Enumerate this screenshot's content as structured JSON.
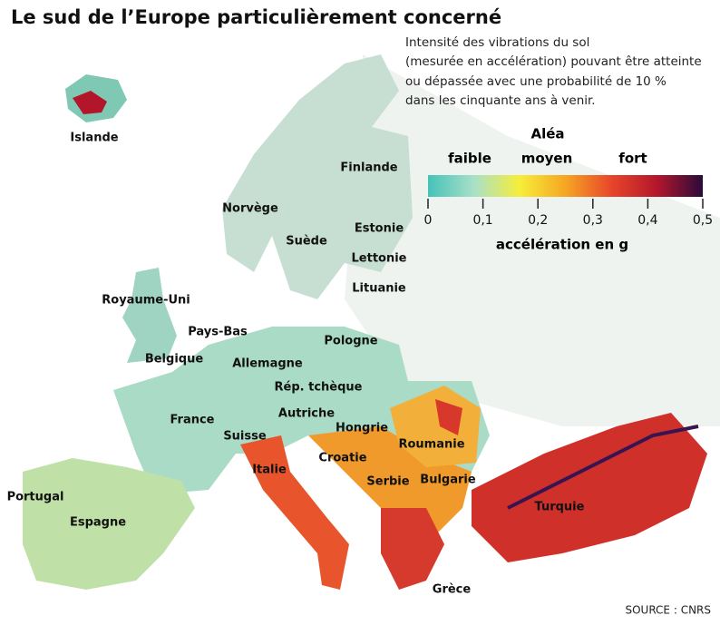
{
  "title": "Le sud de l’Europe particulièrement concerné",
  "description": [
    "Intensité des vibrations du sol",
    "(mesurée en accélération) pouvant être atteinte",
    "ou dépassée avec une probabilité de 10 %",
    "dans les cinquante ans à venir."
  ],
  "legend": {
    "title": "Aléa",
    "levels": [
      "faible",
      "moyen",
      "fort"
    ],
    "scale": {
      "lim": [
        0,
        0.5
      ],
      "ticks": [
        0,
        {
          "value": 0.1,
          "label": "0,1"
        },
        {
          "value": 0.2,
          "label": "0,2"
        },
        {
          "value": 0.3,
          "label": "0,3"
        },
        {
          "value": 0.4,
          "label": "0,4"
        },
        {
          "value": 0.5,
          "label": "0,5"
        }
      ],
      "label": "accélération en g",
      "colors": [
        "#45c2b8",
        "#a8e0c8",
        "#f7ee3a",
        "#f6a623",
        "#e8462a",
        "#b3162b",
        "#2a0b3a"
      ]
    }
  },
  "countries": [
    "Islande",
    "Finlande",
    "Norvège",
    "Suède",
    "Estonie",
    "Lettonie",
    "Lituanie",
    "Royaume-Uni",
    "Pays-Bas",
    "Belgique",
    "Allemagne",
    "Pologne",
    "Rép. tchèque",
    "France",
    "Autriche",
    "Hongrie",
    "Suisse",
    "Roumanie",
    "Croatie",
    "Italie",
    "Serbie",
    "Bulgarie",
    "Portugal",
    "Espagne",
    "Turquie",
    "Grèce"
  ],
  "source": "SOURCE : CNRS"
}
